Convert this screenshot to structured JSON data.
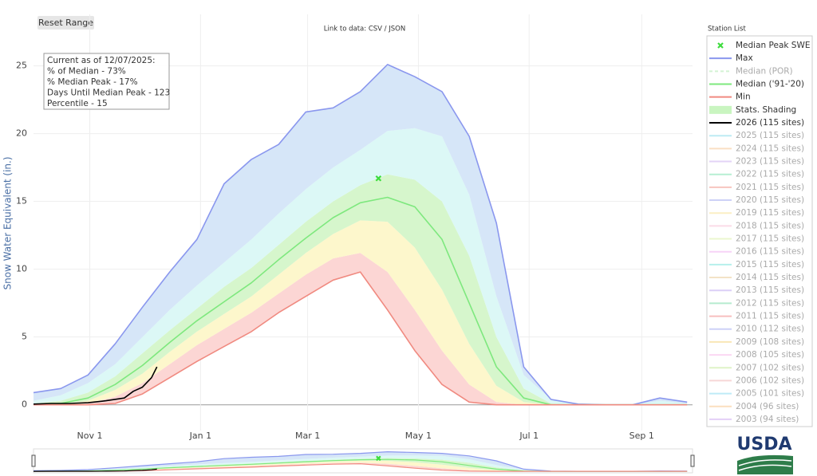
{
  "chart_data": {
    "type": "line",
    "title_button": "Reset Range",
    "data_link": "Link to data: CSV / JSON",
    "legend_title": "Station List",
    "logo": "USDA",
    "ylabel": "Snow Water Equivalent (in.)",
    "annotation": [
      "Current as of 12/07/2025:",
      "% of Median - 73%",
      "% Median Peak - 17%",
      "Days Until Median Peak - 123",
      "Percentile - 15"
    ],
    "xlim": [
      0,
      363
    ],
    "ylim": [
      -1.9,
      28.8
    ],
    "xticks": [
      {
        "value": 31,
        "label": "Nov 1"
      },
      {
        "value": 92,
        "label": "Jan 1"
      },
      {
        "value": 151,
        "label": "Mar 1"
      },
      {
        "value": 212,
        "label": "May 1"
      },
      {
        "value": 273,
        "label": "Jul 1"
      },
      {
        "value": 335,
        "label": "Sep 1"
      }
    ],
    "yticks": [
      0,
      5,
      10,
      15,
      20,
      25
    ],
    "grid": true,
    "x": [
      0,
      15,
      30,
      45,
      60,
      75,
      90,
      105,
      120,
      135,
      150,
      165,
      180,
      195,
      210,
      225,
      240,
      255,
      270,
      285,
      300,
      315,
      330,
      345,
      360
    ],
    "peak": {
      "name": "Median Peak SWE",
      "color": "#3ddc3d",
      "x": 190,
      "y": 16.7
    },
    "series": [
      {
        "name": "Max",
        "color": "#8a97ee",
        "values": [
          0.9,
          1.2,
          2.2,
          4.5,
          7.2,
          9.8,
          12.2,
          16.3,
          18.1,
          19.2,
          21.6,
          21.9,
          23.1,
          25.1,
          24.2,
          23.1,
          19.8,
          13.4,
          2.8,
          0.4,
          0.05,
          0,
          0,
          0.5,
          0.2
        ]
      },
      {
        "name": "Median (POR)",
        "color": "#a8e8a8",
        "visible": false,
        "dash": true
      },
      {
        "name": "Median ('91-'20)",
        "color": "#7ee87e",
        "values": [
          0,
          0.1,
          0.5,
          1.5,
          2.9,
          4.6,
          6.2,
          7.6,
          9.0,
          10.7,
          12.3,
          13.8,
          14.9,
          15.3,
          14.6,
          12.2,
          7.5,
          2.8,
          0.5,
          0,
          0,
          0,
          0,
          0,
          0
        ]
      },
      {
        "name": "Min",
        "color": "#f08a80",
        "values": [
          0,
          0,
          0,
          0.1,
          0.8,
          2.0,
          3.2,
          4.3,
          5.4,
          6.8,
          8.0,
          9.2,
          9.8,
          7.0,
          4.0,
          1.5,
          0.2,
          0,
          0,
          0,
          0,
          0,
          0,
          0,
          0
        ]
      },
      {
        "name": "2026 (115 sites)",
        "color": "#000000",
        "x": [
          0,
          10,
          20,
          30,
          40,
          50,
          55,
          60,
          65,
          68
        ],
        "values": [
          0.05,
          0.1,
          0.1,
          0.15,
          0.3,
          0.5,
          1.0,
          1.3,
          2.0,
          2.8
        ]
      },
      {
        "name": "2025 (115 sites)",
        "color": "#7fd8e8",
        "visible": false
      },
      {
        "name": "2024 (115 sites)",
        "color": "#f5c08a",
        "visible": false
      },
      {
        "name": "2023 (115 sites)",
        "color": "#c8a8f0",
        "visible": false
      },
      {
        "name": "2022 (115 sites)",
        "color": "#70e0a8",
        "visible": false
      },
      {
        "name": "2021 (115 sites)",
        "color": "#f08a80",
        "visible": false
      },
      {
        "name": "2020 (115 sites)",
        "color": "#9ca4f0",
        "visible": false
      },
      {
        "name": "2019 (115 sites)",
        "color": "#f8e08a",
        "visible": false
      },
      {
        "name": "2018 (115 sites)",
        "color": "#f8b8d0",
        "visible": false
      },
      {
        "name": "2017 (115 sites)",
        "color": "#d8f0a0",
        "visible": false
      },
      {
        "name": "2016 (115 sites)",
        "color": "#f0a8f0",
        "visible": false
      },
      {
        "name": "2015 (115 sites)",
        "color": "#70e0d8",
        "visible": false
      },
      {
        "name": "2014 (115 sites)",
        "color": "#e8c890",
        "visible": false
      },
      {
        "name": "2013 (115 sites)",
        "color": "#b8a0f0",
        "visible": false
      },
      {
        "name": "2012 (115 sites)",
        "color": "#70d8a0",
        "visible": false
      },
      {
        "name": "2011 (115 sites)",
        "color": "#f08080",
        "visible": false
      },
      {
        "name": "2010 (112 sites)",
        "color": "#9ca4f0",
        "visible": false
      },
      {
        "name": "2009 (108 sites)",
        "color": "#f5d070",
        "visible": false
      },
      {
        "name": "2008 (105 sites)",
        "color": "#f8b0e8",
        "visible": false
      },
      {
        "name": "2007 (102 sites)",
        "color": "#c0e890",
        "visible": false
      },
      {
        "name": "2006 (102 sites)",
        "color": "#f0b0b0",
        "visible": false
      },
      {
        "name": "2005 (101 sites)",
        "color": "#80d8f0",
        "visible": false
      },
      {
        "name": "2004 (96 sites)",
        "color": "#f8c080",
        "visible": false
      },
      {
        "name": "2003 (94 sites)",
        "color": "#c8a0f0",
        "visible": false
      }
    ],
    "shading": {
      "name": "Stats. Shading",
      "legend_color": "#c9f5c0",
      "colors": [
        "#fcd6d4",
        "#fdf7cc",
        "#d6f6cc",
        "#dcf8f6",
        "#d6e6f8"
      ],
      "bounds": [
        [
          0,
          0,
          0.1,
          0.6,
          1.6,
          3.0,
          4.4,
          5.6,
          6.8,
          8.2,
          9.6,
          10.8,
          11.2,
          9.8,
          7.0,
          4.0,
          1.5,
          0.2,
          0,
          0,
          0,
          0,
          0,
          0,
          0
        ],
        [
          0,
          0,
          0.3,
          1.1,
          2.3,
          3.9,
          5.4,
          6.7,
          8.0,
          9.6,
          11.2,
          12.6,
          13.6,
          13.5,
          11.6,
          8.5,
          4.5,
          1.4,
          0.2,
          0,
          0,
          0,
          0,
          0,
          0
        ],
        [
          0.1,
          0.3,
          0.9,
          2.1,
          3.8,
          5.5,
          7.1,
          8.7,
          10.1,
          11.8,
          13.5,
          15.0,
          16.2,
          17.0,
          16.6,
          15.0,
          11.0,
          5.0,
          1.2,
          0.1,
          0,
          0,
          0,
          0,
          0
        ],
        [
          0.3,
          0.7,
          1.6,
          3.0,
          5.0,
          7.0,
          8.8,
          10.5,
          12.2,
          14.1,
          15.9,
          17.5,
          18.8,
          20.2,
          20.4,
          19.8,
          15.5,
          8.0,
          2.2,
          0.4,
          0,
          0,
          0,
          0.3,
          0.1
        ]
      ]
    }
  }
}
